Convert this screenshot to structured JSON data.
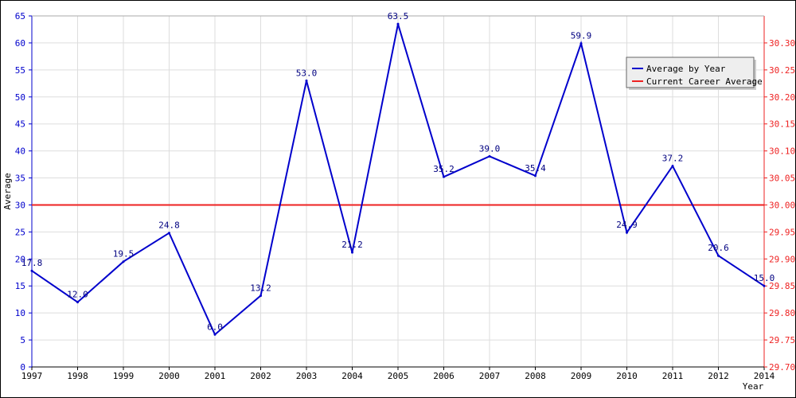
{
  "chart_data": {
    "type": "line",
    "xlabel": "Year",
    "ylabel": "Average",
    "categories": [
      "1997",
      "1998",
      "1999",
      "2000",
      "2001",
      "2002",
      "2003",
      "2004",
      "2005",
      "2006",
      "2007",
      "2008",
      "2009",
      "2010",
      "2011",
      "2012",
      "2014"
    ],
    "series": [
      {
        "name": "Average by Year",
        "color": "#0000cc",
        "axis": "left",
        "values": [
          17.8,
          12.0,
          19.5,
          24.8,
          6.0,
          13.2,
          53.0,
          21.2,
          63.5,
          35.2,
          39.0,
          35.4,
          59.9,
          24.9,
          37.2,
          20.6,
          15.0
        ],
        "labels": [
          "17.8",
          "12.0",
          "19.5",
          "24.8",
          "6.0",
          "13.2",
          "53.0",
          "21.2",
          "63.5",
          "35.2",
          "39.0",
          "35.4",
          "59.9",
          "24.9",
          "37.2",
          "20.6",
          "15.0"
        ]
      },
      {
        "name": "Current Career Average",
        "color": "#ee2222",
        "axis": "right",
        "value": 30.0
      }
    ],
    "left_axis": {
      "min": 0,
      "max": 65,
      "step": 5,
      "color": "#0000cc",
      "ticks": [
        "0",
        "5",
        "10",
        "15",
        "20",
        "25",
        "30",
        "35",
        "40",
        "45",
        "50",
        "55",
        "60",
        "65"
      ]
    },
    "right_axis": {
      "min": 29.7,
      "max": 30.35,
      "color": "#ee2222",
      "ticks": [
        "29.70",
        "29.75",
        "29.80",
        "29.85",
        "29.90",
        "29.95",
        "30.00",
        "30.05",
        "30.10",
        "30.15",
        "30.20",
        "30.25",
        "30.30"
      ]
    },
    "grid": true,
    "legend_position": "top-right"
  }
}
